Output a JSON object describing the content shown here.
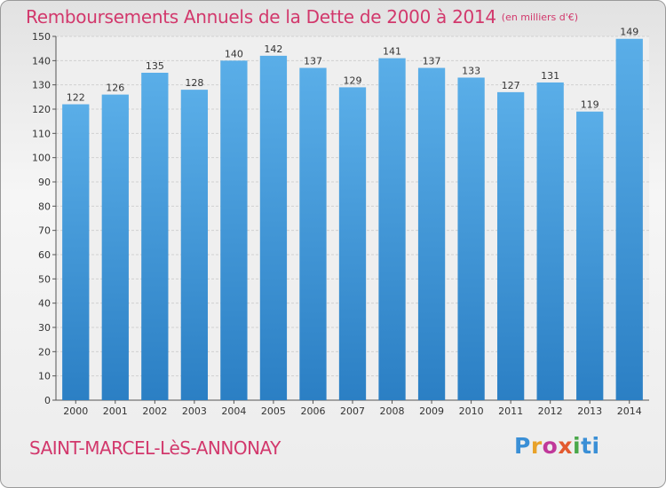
{
  "header": {
    "title": "Remboursements Annuels de la Dette de 2000 à 2014",
    "subtitle": "(en milliers d'€)"
  },
  "footer": {
    "town": "SAINT-MARCEL-LèS-ANNONAY",
    "logo": [
      "P",
      "r",
      "o",
      "x",
      "i",
      "ti"
    ]
  },
  "colors": {
    "accent": "#d2386c",
    "bar_top": "#5aaee8",
    "bar_bottom": "#2b7fc4"
  },
  "chart_data": {
    "type": "bar",
    "categories": [
      "2000",
      "2001",
      "2002",
      "2003",
      "2004",
      "2005",
      "2006",
      "2007",
      "2008",
      "2009",
      "2010",
      "2011",
      "2012",
      "2013",
      "2014"
    ],
    "values": [
      122,
      126,
      135,
      128,
      140,
      142,
      137,
      129,
      141,
      137,
      133,
      127,
      131,
      119,
      149
    ],
    "ylim": [
      0,
      150
    ],
    "yticks": [
      0,
      10,
      20,
      30,
      40,
      50,
      60,
      70,
      80,
      90,
      100,
      110,
      120,
      130,
      140,
      150
    ],
    "grid": true,
    "data_labels": true
  }
}
